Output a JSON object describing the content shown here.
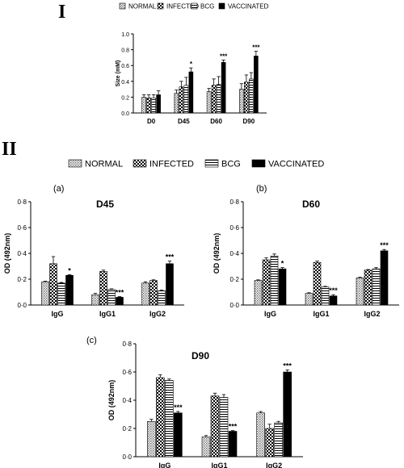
{
  "figure": {
    "panel_I": "I",
    "panel_II": "II"
  },
  "colors": {
    "normal": "pattern-grey-dots",
    "infected": "pattern-checker",
    "bcg": "pattern-horizontal-lines",
    "vaccinated": "#000000"
  },
  "chart_data": [
    {
      "type": "bar",
      "panel": "I",
      "title": "",
      "ylabel": "Size (mM)",
      "xlabel": "",
      "ylim": [
        0,
        1.0
      ],
      "yticks": [
        "0.0",
        "0.2",
        "0.4",
        "0.6",
        "0.8",
        "1.0"
      ],
      "categories": [
        "D0",
        "D45",
        "D60",
        "D90"
      ],
      "legend": [
        "NORMAL",
        "INFECTED",
        "BCG",
        "VACCINATED"
      ],
      "series": [
        {
          "name": "NORMAL",
          "values": [
            0.2,
            0.25,
            0.27,
            0.3
          ],
          "errors": [
            0.03,
            0.04,
            0.04,
            0.07
          ]
        },
        {
          "name": "INFECTED",
          "values": [
            0.19,
            0.33,
            0.35,
            0.39
          ],
          "errors": [
            0.04,
            0.07,
            0.08,
            0.09
          ]
        },
        {
          "name": "BCG",
          "values": [
            0.19,
            0.35,
            0.36,
            0.43
          ],
          "errors": [
            0.04,
            0.1,
            0.1,
            0.08
          ]
        },
        {
          "name": "VACCINATED",
          "values": [
            0.23,
            0.52,
            0.64,
            0.72
          ],
          "errors": [
            0.05,
            0.05,
            0.03,
            0.06
          ]
        }
      ],
      "annotations": [
        {
          "category": "D45",
          "series": "VACCINATED",
          "text": "*"
        },
        {
          "category": "D60",
          "series": "VACCINATED",
          "text": "***"
        },
        {
          "category": "D90",
          "series": "VACCINATED",
          "text": "***"
        }
      ]
    },
    {
      "type": "bar",
      "panel": "(a)",
      "title": "D45",
      "ylabel": "OD (492nm)",
      "xlabel": "",
      "ylim": [
        0,
        0.8
      ],
      "yticks": [
        "0·0",
        "0·2",
        "0·4",
        "0·6",
        "0·8"
      ],
      "categories": [
        "IgG",
        "IgG1",
        "IgG2"
      ],
      "legend": [
        "NORMAL",
        "INFECTED",
        "BCG",
        "VACCINATED"
      ],
      "series": [
        {
          "name": "NORMAL",
          "values": [
            0.18,
            0.08,
            0.17
          ],
          "errors": [
            0.005,
            0.01,
            0.01
          ]
        },
        {
          "name": "INFECTED",
          "values": [
            0.32,
            0.26,
            0.19
          ],
          "errors": [
            0.055,
            0.01,
            0.005
          ]
        },
        {
          "name": "BCG",
          "values": [
            0.17,
            0.12,
            0.11
          ],
          "errors": [
            0.005,
            0.005,
            0.005
          ]
        },
        {
          "name": "VACCINATED",
          "values": [
            0.23,
            0.06,
            0.32
          ],
          "errors": [
            0.005,
            0.005,
            0.02
          ]
        }
      ],
      "annotations": [
        {
          "category": "IgG",
          "series": "VACCINATED",
          "text": "*"
        },
        {
          "category": "IgG1",
          "series": "VACCINATED",
          "text": "***"
        },
        {
          "category": "IgG2",
          "series": "VACCINATED",
          "text": "***"
        }
      ]
    },
    {
      "type": "bar",
      "panel": "(b)",
      "title": "D60",
      "ylabel": "OD (492nm)",
      "xlabel": "",
      "ylim": [
        0,
        0.8
      ],
      "yticks": [
        "0·0",
        "0·2",
        "0·4",
        "0·6",
        "0·8"
      ],
      "categories": [
        "IgG",
        "IgG1",
        "IgG2"
      ],
      "legend": [
        "NORMAL",
        "INFECTED",
        "BCG",
        "VACCINATED"
      ],
      "series": [
        {
          "name": "NORMAL",
          "values": [
            0.19,
            0.09,
            0.21
          ],
          "errors": [
            0.005,
            0.005,
            0.005
          ]
        },
        {
          "name": "INFECTED",
          "values": [
            0.35,
            0.33,
            0.27
          ],
          "errors": [
            0.015,
            0.01,
            0.005
          ]
        },
        {
          "name": "BCG",
          "values": [
            0.38,
            0.14,
            0.28
          ],
          "errors": [
            0.015,
            0.005,
            0.01
          ]
        },
        {
          "name": "VACCINATED",
          "values": [
            0.28,
            0.07,
            0.42
          ],
          "errors": [
            0.01,
            0.01,
            0.01
          ]
        }
      ],
      "annotations": [
        {
          "category": "IgG",
          "series": "VACCINATED",
          "text": "*"
        },
        {
          "category": "IgG1",
          "series": "VACCINATED",
          "text": "***"
        },
        {
          "category": "IgG2",
          "series": "VACCINATED",
          "text": "***"
        }
      ]
    },
    {
      "type": "bar",
      "panel": "(c)",
      "title": "D90",
      "ylabel": "OD (492nm)",
      "xlabel": "",
      "ylim": [
        0,
        0.8
      ],
      "yticks": [
        "0·0",
        "0·2",
        "0·4",
        "0·6",
        "0·8"
      ],
      "categories": [
        "IgG",
        "IgG1",
        "IgG2"
      ],
      "legend": [
        "NORMAL",
        "INFECTED",
        "BCG",
        "VACCINATED"
      ],
      "series": [
        {
          "name": "NORMAL",
          "values": [
            0.25,
            0.14,
            0.31
          ],
          "errors": [
            0.015,
            0.01,
            0.01
          ]
        },
        {
          "name": "INFECTED",
          "values": [
            0.56,
            0.43,
            0.2
          ],
          "errors": [
            0.02,
            0.02,
            0.03
          ]
        },
        {
          "name": "BCG",
          "values": [
            0.54,
            0.42,
            0.24
          ],
          "errors": [
            0.01,
            0.02,
            0.01
          ]
        },
        {
          "name": "VACCINATED",
          "values": [
            0.31,
            0.18,
            0.6
          ],
          "errors": [
            0.01,
            0.005,
            0.015
          ]
        }
      ],
      "annotations": [
        {
          "category": "IgG",
          "series": "VACCINATED",
          "text": "***"
        },
        {
          "category": "IgG1",
          "series": "VACCINATED",
          "text": "***"
        },
        {
          "category": "IgG2",
          "series": "VACCINATED",
          "text": "***"
        }
      ]
    }
  ]
}
